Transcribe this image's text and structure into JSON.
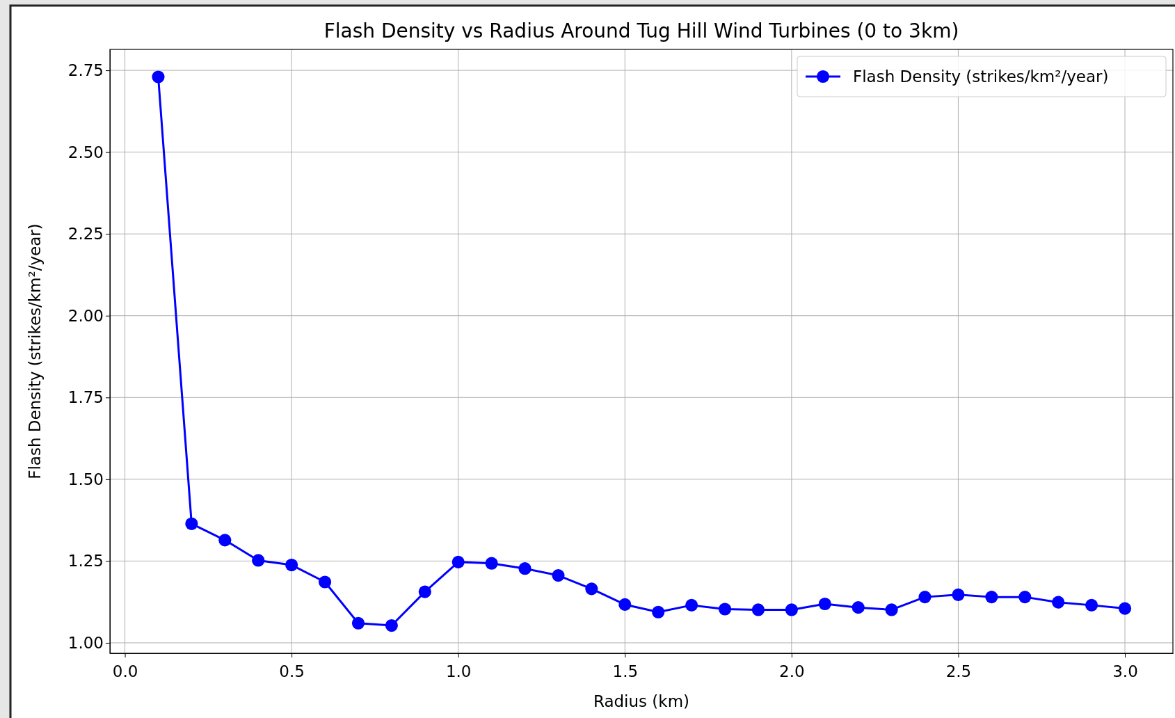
{
  "chart_data": {
    "type": "line",
    "title": "Flash Density vs Radius Around Tug Hill Wind Turbines (0 to 3km)",
    "xlabel": "Radius (km)",
    "ylabel": "Flash Density (strikes/km²/year)",
    "x": [
      0.1,
      0.2,
      0.3,
      0.4,
      0.5,
      0.6,
      0.7,
      0.8,
      0.9,
      1.0,
      1.1,
      1.2,
      1.3,
      1.4,
      1.5,
      1.6,
      1.7,
      1.8,
      1.9,
      2.0,
      2.1,
      2.2,
      2.3,
      2.4,
      2.5,
      2.6,
      2.7,
      2.8,
      2.9,
      3.0
    ],
    "series": [
      {
        "name": "Flash Density (strikes/km²/year)",
        "color": "#0000ff",
        "values": [
          2.73,
          1.364,
          1.314,
          1.252,
          1.238,
          1.186,
          1.06,
          1.053,
          1.156,
          1.247,
          1.243,
          1.227,
          1.206,
          1.165,
          1.117,
          1.094,
          1.115,
          1.103,
          1.101,
          1.101,
          1.119,
          1.108,
          1.101,
          1.14,
          1.147,
          1.14,
          1.14,
          1.124,
          1.115,
          1.105
        ]
      }
    ],
    "xlim": [
      -0.045,
      3.144
    ],
    "xticks": [
      {
        "value": 0,
        "label": "0.0"
      },
      {
        "value": 0.5,
        "label": "0.5"
      },
      {
        "value": 1,
        "label": "1.0"
      },
      {
        "value": 1.5,
        "label": "1.5"
      },
      {
        "value": 2,
        "label": "2.0"
      },
      {
        "value": 2.5,
        "label": "2.5"
      },
      {
        "value": 3,
        "label": "3.0"
      }
    ],
    "ylim": [
      0.968,
      2.814
    ],
    "yticks": [
      {
        "value": 1,
        "label": "1.00"
      },
      {
        "value": 1.25,
        "label": "1.25"
      },
      {
        "value": 1.5,
        "label": "1.50"
      },
      {
        "value": 1.75,
        "label": "1.75"
      },
      {
        "value": 2,
        "label": "2.00"
      },
      {
        "value": 2.25,
        "label": "2.25"
      },
      {
        "value": 2.5,
        "label": "2.50"
      },
      {
        "value": 2.75,
        "label": "2.75"
      }
    ],
    "grid": true,
    "legend": "top right",
    "marker": "circle",
    "line_style": "solid"
  }
}
